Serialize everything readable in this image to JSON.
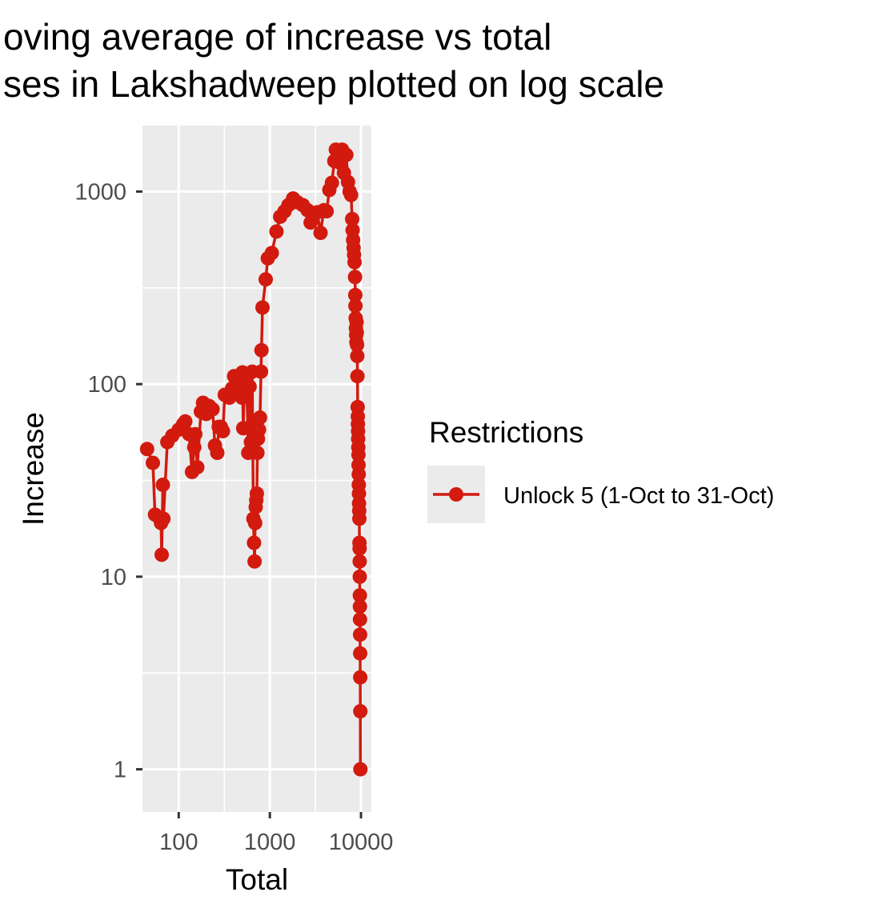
{
  "chart_data": {
    "type": "line",
    "title_lines": [
      "oving average of increase vs total",
      "ses in Lakshadweep plotted on log scale"
    ],
    "xlabel": "Total",
    "ylabel": "Increase",
    "x_scale": "log10",
    "y_scale": "log10",
    "xlim": [
      40,
      13000
    ],
    "ylim": [
      0.6,
      2200
    ],
    "x_ticks": [
      100,
      1000,
      10000
    ],
    "x_tick_labels": [
      "100",
      "1000",
      "10000"
    ],
    "y_ticks": [
      1,
      10,
      100,
      1000
    ],
    "y_tick_labels": [
      "1",
      "10",
      "100",
      "1000"
    ],
    "grid": true,
    "legend": {
      "title": "Restrictions",
      "position": "right",
      "entries": [
        "Unlock 5 (1-Oct to 31-Oct)"
      ]
    },
    "colors": {
      "series": "#d21a0e",
      "panel": "#ebebeb",
      "grid": "#ffffff",
      "legend_key": "#ebebeb"
    },
    "series": [
      {
        "name": "Unlock 5 (1-Oct to 31-Oct)",
        "points": [
          [
            45,
            46
          ],
          [
            52,
            39
          ],
          [
            55,
            21
          ],
          [
            62,
            20
          ],
          [
            64,
            19
          ],
          [
            65,
            13
          ],
          [
            67,
            30
          ],
          [
            68,
            20
          ],
          [
            75,
            50
          ],
          [
            85,
            54
          ],
          [
            100,
            58
          ],
          [
            112,
            62
          ],
          [
            118,
            64
          ],
          [
            130,
            55
          ],
          [
            140,
            35
          ],
          [
            148,
            47
          ],
          [
            152,
            55
          ],
          [
            160,
            37
          ],
          [
            175,
            72
          ],
          [
            185,
            80
          ],
          [
            200,
            70
          ],
          [
            215,
            77
          ],
          [
            235,
            74
          ],
          [
            250,
            48
          ],
          [
            265,
            44
          ],
          [
            275,
            60
          ],
          [
            290,
            60
          ],
          [
            305,
            57
          ],
          [
            320,
            88
          ],
          [
            360,
            85
          ],
          [
            385,
            95
          ],
          [
            405,
            110
          ],
          [
            440,
            90
          ],
          [
            470,
            105
          ],
          [
            495,
            85
          ],
          [
            500,
            115
          ],
          [
            510,
            59
          ],
          [
            530,
            108
          ],
          [
            555,
            113
          ],
          [
            580,
            44
          ],
          [
            600,
            97
          ],
          [
            610,
            60
          ],
          [
            620,
            50
          ],
          [
            640,
            116
          ],
          [
            660,
            20
          ],
          [
            670,
            15
          ],
          [
            680,
            12
          ],
          [
            690,
            19
          ],
          [
            700,
            23
          ],
          [
            710,
            25
          ],
          [
            720,
            27
          ],
          [
            730,
            44
          ],
          [
            740,
            52
          ],
          [
            760,
            58
          ],
          [
            780,
            67
          ],
          [
            800,
            116
          ],
          [
            810,
            150
          ],
          [
            830,
            250
          ],
          [
            900,
            350
          ],
          [
            950,
            450
          ],
          [
            1050,
            480
          ],
          [
            1180,
            620
          ],
          [
            1300,
            740
          ],
          [
            1450,
            790
          ],
          [
            1600,
            850
          ],
          [
            1800,
            920
          ],
          [
            2000,
            880
          ],
          [
            2300,
            850
          ],
          [
            2600,
            800
          ],
          [
            2800,
            690
          ],
          [
            3000,
            760
          ],
          [
            3300,
            780
          ],
          [
            3600,
            610
          ],
          [
            3900,
            800
          ],
          [
            4200,
            790
          ],
          [
            4500,
            1020
          ],
          [
            4800,
            1110
          ],
          [
            5100,
            1440
          ],
          [
            5300,
            1650
          ],
          [
            5600,
            1490
          ],
          [
            5900,
            1410
          ],
          [
            6200,
            1650
          ],
          [
            6500,
            1250
          ],
          [
            6900,
            1550
          ],
          [
            7200,
            1120
          ],
          [
            7500,
            1000
          ],
          [
            7800,
            960
          ],
          [
            8000,
            720
          ],
          [
            8100,
            630
          ],
          [
            8200,
            560
          ],
          [
            8300,
            510
          ],
          [
            8400,
            470
          ],
          [
            8500,
            430
          ],
          [
            8600,
            360
          ],
          [
            8650,
            290
          ],
          [
            8700,
            255
          ],
          [
            8750,
            220
          ],
          [
            8800,
            195
          ],
          [
            8850,
            180
          ],
          [
            8900,
            165
          ],
          [
            8950,
            210
          ],
          [
            9000,
            185
          ],
          [
            9050,
            160
          ],
          [
            9100,
            140
          ],
          [
            9150,
            110
          ],
          [
            9200,
            76
          ],
          [
            9230,
            68
          ],
          [
            9260,
            62
          ],
          [
            9290,
            57
          ],
          [
            9320,
            52
          ],
          [
            9350,
            47
          ],
          [
            9380,
            43
          ],
          [
            9410,
            38
          ],
          [
            9440,
            34
          ],
          [
            9470,
            30
          ],
          [
            9500,
            27
          ],
          [
            9530,
            24
          ],
          [
            9560,
            22
          ],
          [
            9590,
            20
          ],
          [
            9620,
            15
          ],
          [
            9650,
            14
          ],
          [
            9680,
            12
          ],
          [
            9700,
            10
          ],
          [
            9720,
            8
          ],
          [
            9740,
            7
          ],
          [
            9760,
            6
          ],
          [
            9780,
            5
          ],
          [
            9800,
            4
          ],
          [
            9820,
            3
          ],
          [
            9840,
            2
          ],
          [
            9850,
            1
          ]
        ]
      }
    ]
  }
}
